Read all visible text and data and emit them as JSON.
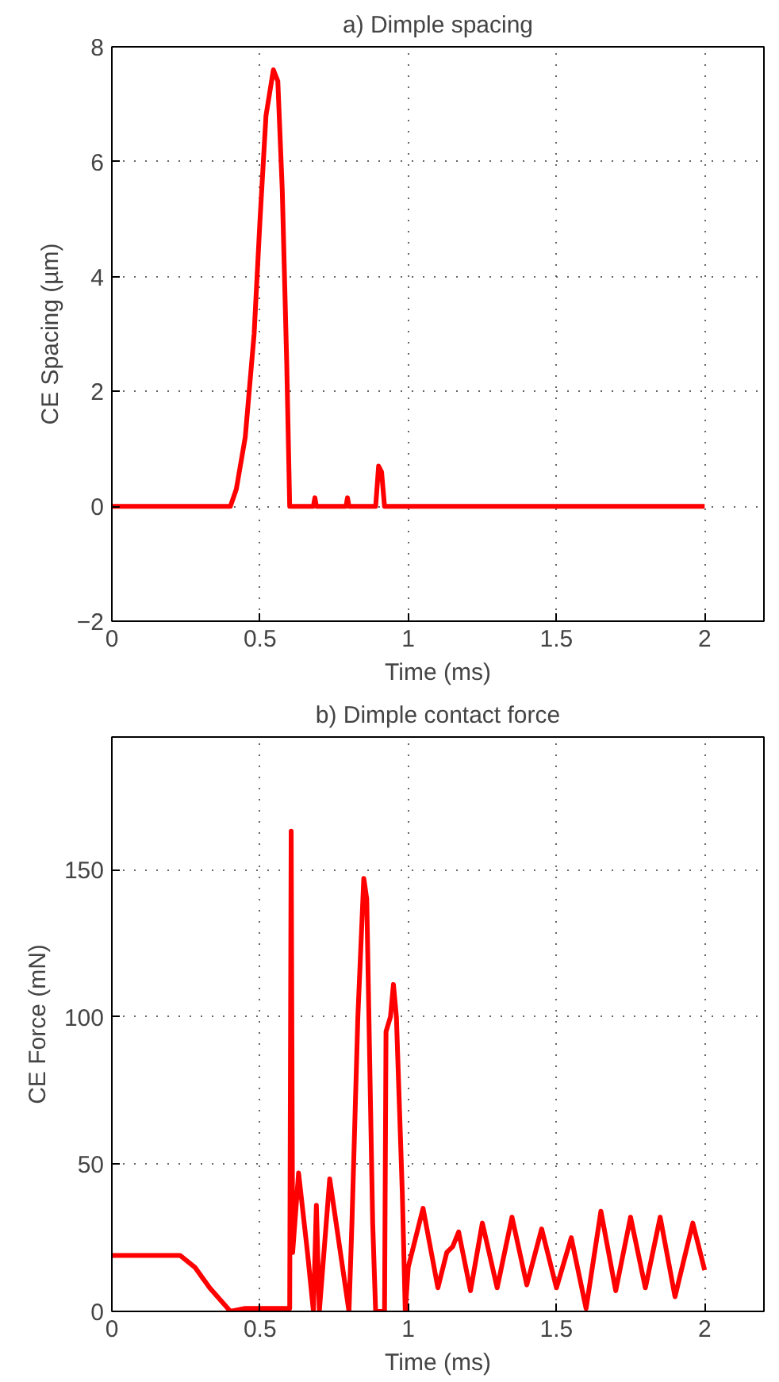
{
  "chart_data": [
    {
      "type": "line",
      "title": "a) Dimple spacing",
      "xlabel": "Time (ms)",
      "ylabel": "CE Spacing (µm)",
      "xlim": [
        0,
        2.2
      ],
      "ylim": [
        -2,
        8
      ],
      "xticks": [
        0,
        0.5,
        1,
        1.5,
        2
      ],
      "yticks": [
        -2,
        0,
        2,
        4,
        6,
        8
      ],
      "grid": true,
      "series": [
        {
          "color": "#ff0000",
          "x": [
            0,
            0.4,
            0.42,
            0.45,
            0.48,
            0.5,
            0.52,
            0.545,
            0.56,
            0.575,
            0.59,
            0.6,
            0.68,
            0.685,
            0.69,
            0.79,
            0.795,
            0.8,
            0.89,
            0.9,
            0.91,
            0.92,
            2.0
          ],
          "values": [
            0,
            0,
            0.3,
            1.2,
            3.0,
            5.0,
            6.8,
            7.6,
            7.4,
            5.5,
            2.5,
            0,
            0,
            0.15,
            0,
            0,
            0.15,
            0,
            0,
            0.7,
            0.6,
            0,
            0
          ]
        }
      ]
    },
    {
      "type": "line",
      "title": "b) Dimple contact force",
      "xlabel": "Time (ms)",
      "ylabel": "CE Force (mN)",
      "xlim": [
        0,
        2.2
      ],
      "ylim": [
        0,
        195
      ],
      "xticks": [
        0,
        0.5,
        1,
        1.5,
        2
      ],
      "yticks": [
        0,
        50,
        100,
        150
      ],
      "grid": true,
      "series": [
        {
          "color": "#ff0000",
          "x": [
            0,
            0.23,
            0.28,
            0.33,
            0.4,
            0.45,
            0.55,
            0.6,
            0.605,
            0.61,
            0.63,
            0.66,
            0.68,
            0.69,
            0.7,
            0.735,
            0.8,
            0.81,
            0.83,
            0.85,
            0.86,
            0.88,
            0.89,
            0.92,
            0.925,
            0.94,
            0.95,
            0.96,
            0.98,
            0.99,
            1.0,
            1.05,
            1.1,
            1.13,
            1.15,
            1.17,
            1.21,
            1.25,
            1.3,
            1.35,
            1.4,
            1.45,
            1.5,
            1.55,
            1.6,
            1.65,
            1.7,
            1.75,
            1.8,
            1.85,
            1.9,
            1.96,
            2.0
          ],
          "values": [
            19,
            19,
            15,
            8,
            0,
            1,
            1,
            1,
            163,
            20,
            47,
            20,
            0,
            36,
            0,
            45,
            0,
            30,
            100,
            147,
            140,
            30,
            0,
            0,
            95,
            100,
            111,
            100,
            40,
            0,
            15,
            35,
            8,
            20,
            22,
            27,
            7,
            30,
            8,
            32,
            9,
            28,
            8,
            25,
            1,
            34,
            7,
            32,
            8,
            32,
            5,
            30,
            14
          ]
        }
      ]
    }
  ]
}
